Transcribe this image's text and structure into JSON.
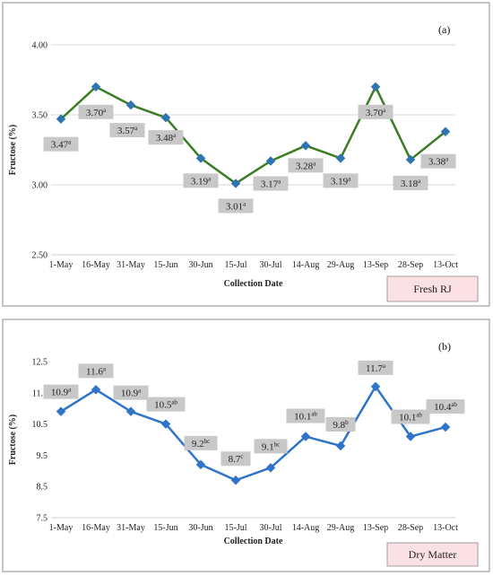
{
  "chart_data": [
    {
      "type": "line",
      "panel_tag": "(a)",
      "categories": [
        "1-May",
        "16-May",
        "31-May",
        "15-Jun",
        "30-Jun",
        "15-Jul",
        "30-Jul",
        "14-Aug",
        "29-Aug",
        "13-Sep",
        "28-Sep",
        "13-Oct"
      ],
      "series": [
        {
          "name": "Fresh RJ",
          "values": [
            3.47,
            3.7,
            3.57,
            3.48,
            3.19,
            3.01,
            3.17,
            3.28,
            3.19,
            3.7,
            3.18,
            3.38
          ],
          "value_labels": [
            "3.47",
            "3.70",
            "3.57",
            "3.48",
            "3.19",
            "3.01",
            "3.17",
            "3.28",
            "3.19",
            "3.70",
            "3.18",
            "3.38"
          ],
          "letters": [
            "a",
            "a",
            "a",
            "a",
            "a",
            "a",
            "a",
            "a",
            "a",
            "a",
            "a",
            "a"
          ],
          "color": "#3a7d22",
          "marker_color": "#2e74b5"
        }
      ],
      "xlabel": "Collection Date",
      "ylabel": "Fructose (%)",
      "ylim": [
        2.5,
        4.0
      ],
      "yticks": [
        "2.50",
        "3.00",
        "3.50",
        "4.00"
      ],
      "ytick_values": [
        2.5,
        3.0,
        3.5,
        4.0
      ],
      "grid": true,
      "legend": "Fresh RJ"
    },
    {
      "type": "line",
      "panel_tag": "(b)",
      "categories": [
        "1-May",
        "16-May",
        "31-May",
        "15-Jun",
        "30-Jun",
        "15-Jul",
        "30-Jul",
        "14-Aug",
        "29-Aug",
        "13-Sep",
        "28-Sep",
        "13-Oct"
      ],
      "series": [
        {
          "name": "Dry Matter",
          "values": [
            10.9,
            11.6,
            10.9,
            10.5,
            9.2,
            8.7,
            9.1,
            10.1,
            9.8,
            11.7,
            10.1,
            10.4
          ],
          "value_labels": [
            "10.9",
            "11.6",
            "10.9",
            "10.5",
            "9.2",
            "8.7",
            "9.1",
            "10.1",
            "9.8",
            "11.7",
            "10.1",
            "10.4"
          ],
          "letters": [
            "a",
            "a",
            "a",
            "ab",
            "bc",
            "c",
            "bc",
            "ab",
            "b",
            "a",
            "ab",
            "ab"
          ],
          "color": "#2e74c9",
          "marker_color": "#2e74c9"
        }
      ],
      "xlabel": "Collection Date",
      "ylabel": "Fructose (%)",
      "ylim": [
        7.5,
        12.5
      ],
      "yticks": [
        "7.5",
        "8.5",
        "9.5",
        "10.5",
        "11.5",
        "12.5"
      ],
      "ytick_values": [
        7.5,
        8.5,
        9.5,
        10.5,
        11.5,
        12.5
      ],
      "grid": false,
      "legend": "Dry Matter"
    }
  ]
}
